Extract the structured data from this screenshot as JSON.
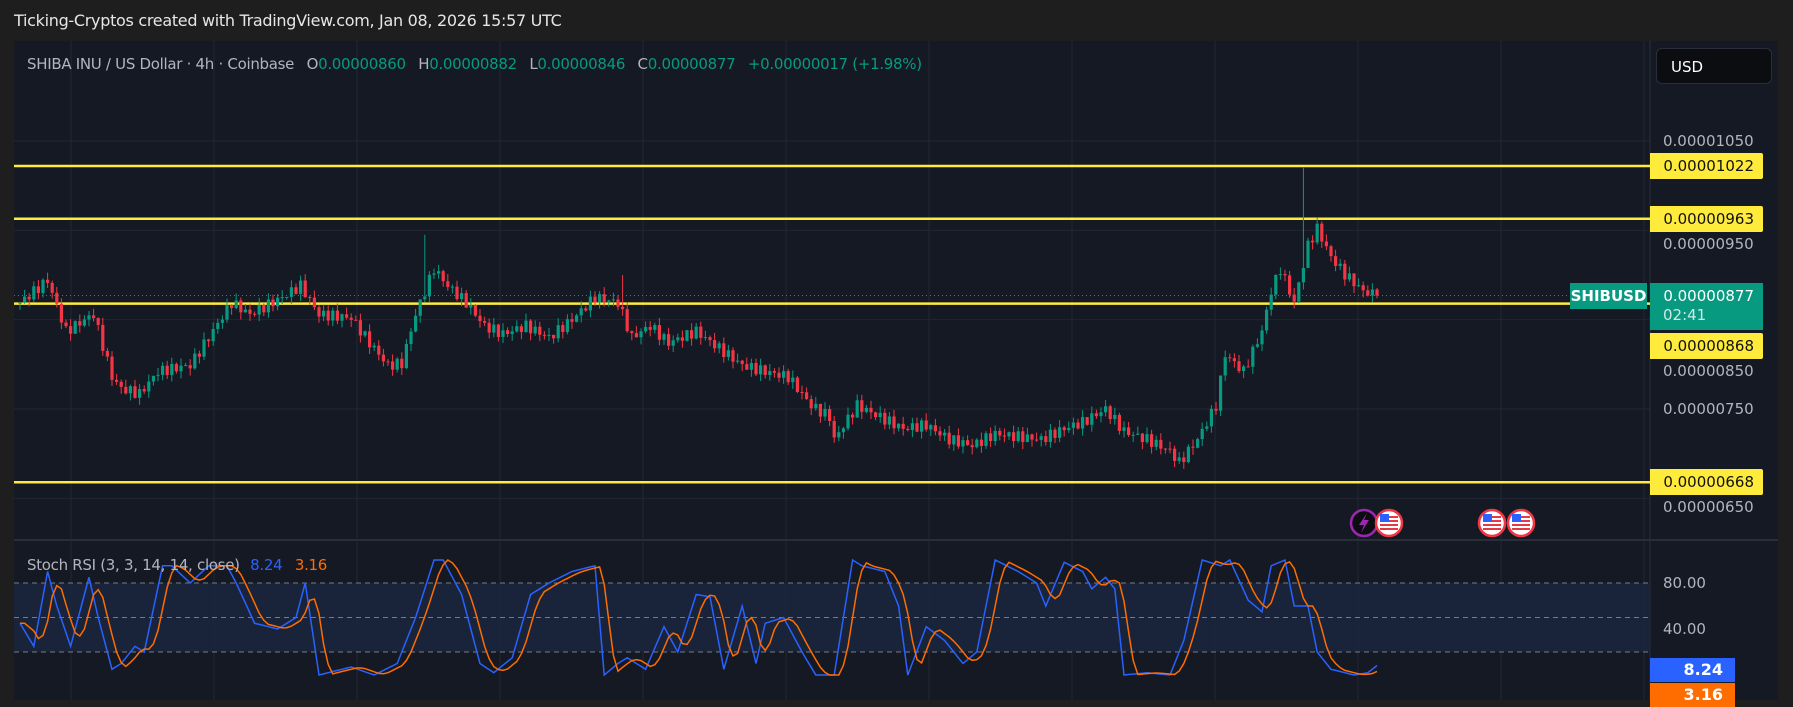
{
  "header": {
    "title": "Ticking-Cryptos created with TradingView.com, Jan 08, 2026 15:57 UTC"
  },
  "legend": {
    "symbol": "SHIBA INU / US Dollar · 4h · Coinbase",
    "o_label": "O",
    "o": "0.00000860",
    "h_label": "H",
    "h": "0.00000882",
    "l_label": "L",
    "l": "0.00000846",
    "c_label": "C",
    "c": "0.00000877",
    "change": "+0.00000017 (+1.98%)"
  },
  "currency_button": "USD",
  "symbol_badge": "SHIBUSD",
  "current_price": {
    "value": "0.00000877",
    "countdown": "02:41"
  },
  "colors": {
    "up": "#089981",
    "down": "#f23645",
    "level": "#ffeb3b",
    "k": "#2962ff",
    "d": "#ff6d00",
    "background": "#151924"
  },
  "events": [
    {
      "icon": "lightning-icon"
    },
    {
      "icon": "us-flag-icon"
    },
    {
      "icon": "us-flag-icon"
    },
    {
      "icon": "us-flag-icon"
    }
  ],
  "chart_data": [
    {
      "type": "candlestick",
      "title": "SHIBA INU / US Dollar · 4h · Coinbase",
      "ylim": [
        6.3e-06,
        1.1e-05
      ],
      "y_ticks": [
        "0.00001050",
        "0.00000950",
        "0.00000850",
        "0.00000750",
        "0.00000650"
      ],
      "y_tick_values": [
        1.05e-05,
        9.5e-06,
        8.5e-06,
        7.5e-06,
        6.5e-06
      ],
      "horizontal_levels": [
        {
          "value": 1.022e-05,
          "label": "0.00001022"
        },
        {
          "value": 9.63e-06,
          "label": "0.00000963"
        },
        {
          "value": 8.68e-06,
          "label": "0.00000868"
        },
        {
          "value": 6.68e-06,
          "label": "0.00000668"
        }
      ],
      "close_anchors": [
        [
          0,
          8.69e-06
        ],
        [
          6,
          8.94e-06
        ],
        [
          10,
          8.37e-06
        ],
        [
          16,
          8.56e-06
        ],
        [
          20,
          7.86e-06
        ],
        [
          22,
          7.73e-06
        ],
        [
          26,
          7.67e-06
        ],
        [
          30,
          7.92e-06
        ],
        [
          37,
          7.99e-06
        ],
        [
          41,
          8.3e-06
        ],
        [
          46,
          8.69e-06
        ],
        [
          50,
          8.56e-06
        ],
        [
          57,
          8.75e-06
        ],
        [
          61,
          8.88e-06
        ],
        [
          65,
          8.56e-06
        ],
        [
          72,
          8.52e-06
        ],
        [
          76,
          8.24e-06
        ],
        [
          80,
          7.99e-06
        ],
        [
          83,
          8.01e-06
        ],
        [
          86,
          8.56e-06
        ],
        [
          90,
          9.07e-06
        ],
        [
          93,
          8.88e-06
        ],
        [
          97,
          8.69e-06
        ],
        [
          101,
          8.43e-06
        ],
        [
          105,
          8.34e-06
        ],
        [
          110,
          8.43e-06
        ],
        [
          115,
          8.3e-06
        ],
        [
          120,
          8.5e-06
        ],
        [
          125,
          8.75e-06
        ],
        [
          130,
          8.69e-06
        ],
        [
          133,
          8.3e-06
        ],
        [
          137,
          8.43e-06
        ],
        [
          141,
          8.24e-06
        ],
        [
          147,
          8.37e-06
        ],
        [
          152,
          8.18e-06
        ],
        [
          157,
          7.99e-06
        ],
        [
          162,
          7.92e-06
        ],
        [
          167,
          7.86e-06
        ],
        [
          172,
          7.54e-06
        ],
        [
          176,
          7.41e-06
        ],
        [
          177,
          7.16e-06
        ],
        [
          182,
          7.54e-06
        ],
        [
          187,
          7.41e-06
        ],
        [
          192,
          7.28e-06
        ],
        [
          197,
          7.32e-06
        ],
        [
          202,
          7.16e-06
        ],
        [
          207,
          7.09e-06
        ],
        [
          212,
          7.22e-06
        ],
        [
          217,
          7.19e-06
        ],
        [
          222,
          7.16e-06
        ],
        [
          227,
          7.28e-06
        ],
        [
          231,
          7.35e-06
        ],
        [
          236,
          7.5e-06
        ],
        [
          240,
          7.25e-06
        ],
        [
          245,
          7.16e-06
        ],
        [
          250,
          7.03e-06
        ],
        [
          252,
          6.9e-06
        ],
        [
          256,
          7.16e-06
        ],
        [
          260,
          7.54e-06
        ],
        [
          262,
          8.11e-06
        ],
        [
          266,
          7.92e-06
        ],
        [
          270,
          8.37e-06
        ],
        [
          272,
          8.82e-06
        ],
        [
          274,
          9.07e-06
        ],
        [
          277,
          8.69e-06
        ],
        [
          280,
          9.33e-06
        ],
        [
          282,
          9.52e-06
        ],
        [
          285,
          9.2e-06
        ],
        [
          288,
          9.01e-06
        ],
        [
          292,
          8.82e-06
        ],
        [
          295,
          8.77e-06
        ]
      ],
      "notable_highs": [
        [
          279,
          1.02e-05
        ],
        [
          88,
          9.45e-06
        ],
        [
          131,
          9e-06
        ]
      ],
      "last_close": 8.77e-06
    },
    {
      "type": "line",
      "title": "Stoch RSI (3, 3, 14, 14, close)",
      "ylim": [
        0,
        100
      ],
      "y_ticks": [
        "80.00",
        "40.00"
      ],
      "bands": [
        20,
        50,
        80
      ],
      "series": [
        {
          "name": "K",
          "last": "8.24",
          "anchors": [
            [
              0,
              45
            ],
            [
              3,
              25
            ],
            [
              6,
              90
            ],
            [
              8,
              60
            ],
            [
              11,
              25
            ],
            [
              15,
              85
            ],
            [
              17,
              50
            ],
            [
              20,
              5
            ],
            [
              22,
              10
            ],
            [
              25,
              25
            ],
            [
              27,
              20
            ],
            [
              31,
              95
            ],
            [
              33,
              95
            ],
            [
              37,
              80
            ],
            [
              41,
              95
            ],
            [
              45,
              95
            ],
            [
              47,
              80
            ],
            [
              51,
              45
            ],
            [
              56,
              40
            ],
            [
              60,
              50
            ],
            [
              62,
              80
            ],
            [
              65,
              0
            ],
            [
              72,
              7
            ],
            [
              77,
              0
            ],
            [
              82,
              10
            ],
            [
              86,
              50
            ],
            [
              90,
              100
            ],
            [
              92,
              100
            ],
            [
              96,
              70
            ],
            [
              100,
              10
            ],
            [
              103,
              2
            ],
            [
              107,
              15
            ],
            [
              111,
              70
            ],
            [
              115,
              80
            ],
            [
              120,
              90
            ],
            [
              125,
              95
            ],
            [
              127,
              0
            ],
            [
              130,
              10
            ],
            [
              132,
              15
            ],
            [
              136,
              5
            ],
            [
              140,
              42
            ],
            [
              143,
              20
            ],
            [
              147,
              70
            ],
            [
              150,
              68
            ],
            [
              153,
              5
            ],
            [
              157,
              60
            ],
            [
              160,
              10
            ],
            [
              162,
              45
            ],
            [
              166,
              50
            ],
            [
              170,
              20
            ],
            [
              173,
              0
            ],
            [
              177,
              0
            ],
            [
              181,
              100
            ],
            [
              183,
              95
            ],
            [
              188,
              90
            ],
            [
              191,
              60
            ],
            [
              193,
              0
            ],
            [
              197,
              42
            ],
            [
              201,
              30
            ],
            [
              205,
              10
            ],
            [
              208,
              20
            ],
            [
              212,
              100
            ],
            [
              217,
              90
            ],
            [
              221,
              80
            ],
            [
              223,
              60
            ],
            [
              227,
              98
            ],
            [
              231,
              90
            ],
            [
              233,
              75
            ],
            [
              236,
              85
            ],
            [
              238,
              75
            ],
            [
              240,
              0
            ],
            [
              245,
              2
            ],
            [
              250,
              0
            ],
            [
              253,
              30
            ],
            [
              257,
              100
            ],
            [
              261,
              95
            ],
            [
              263,
              100
            ],
            [
              267,
              65
            ],
            [
              270,
              55
            ],
            [
              272,
              95
            ],
            [
              275,
              100
            ],
            [
              277,
              60
            ],
            [
              280,
              60
            ],
            [
              282,
              20
            ],
            [
              285,
              5
            ],
            [
              290,
              0
            ],
            [
              293,
              2
            ],
            [
              295,
              8.24
            ]
          ]
        },
        {
          "name": "D",
          "last": "3.16"
        }
      ]
    }
  ]
}
